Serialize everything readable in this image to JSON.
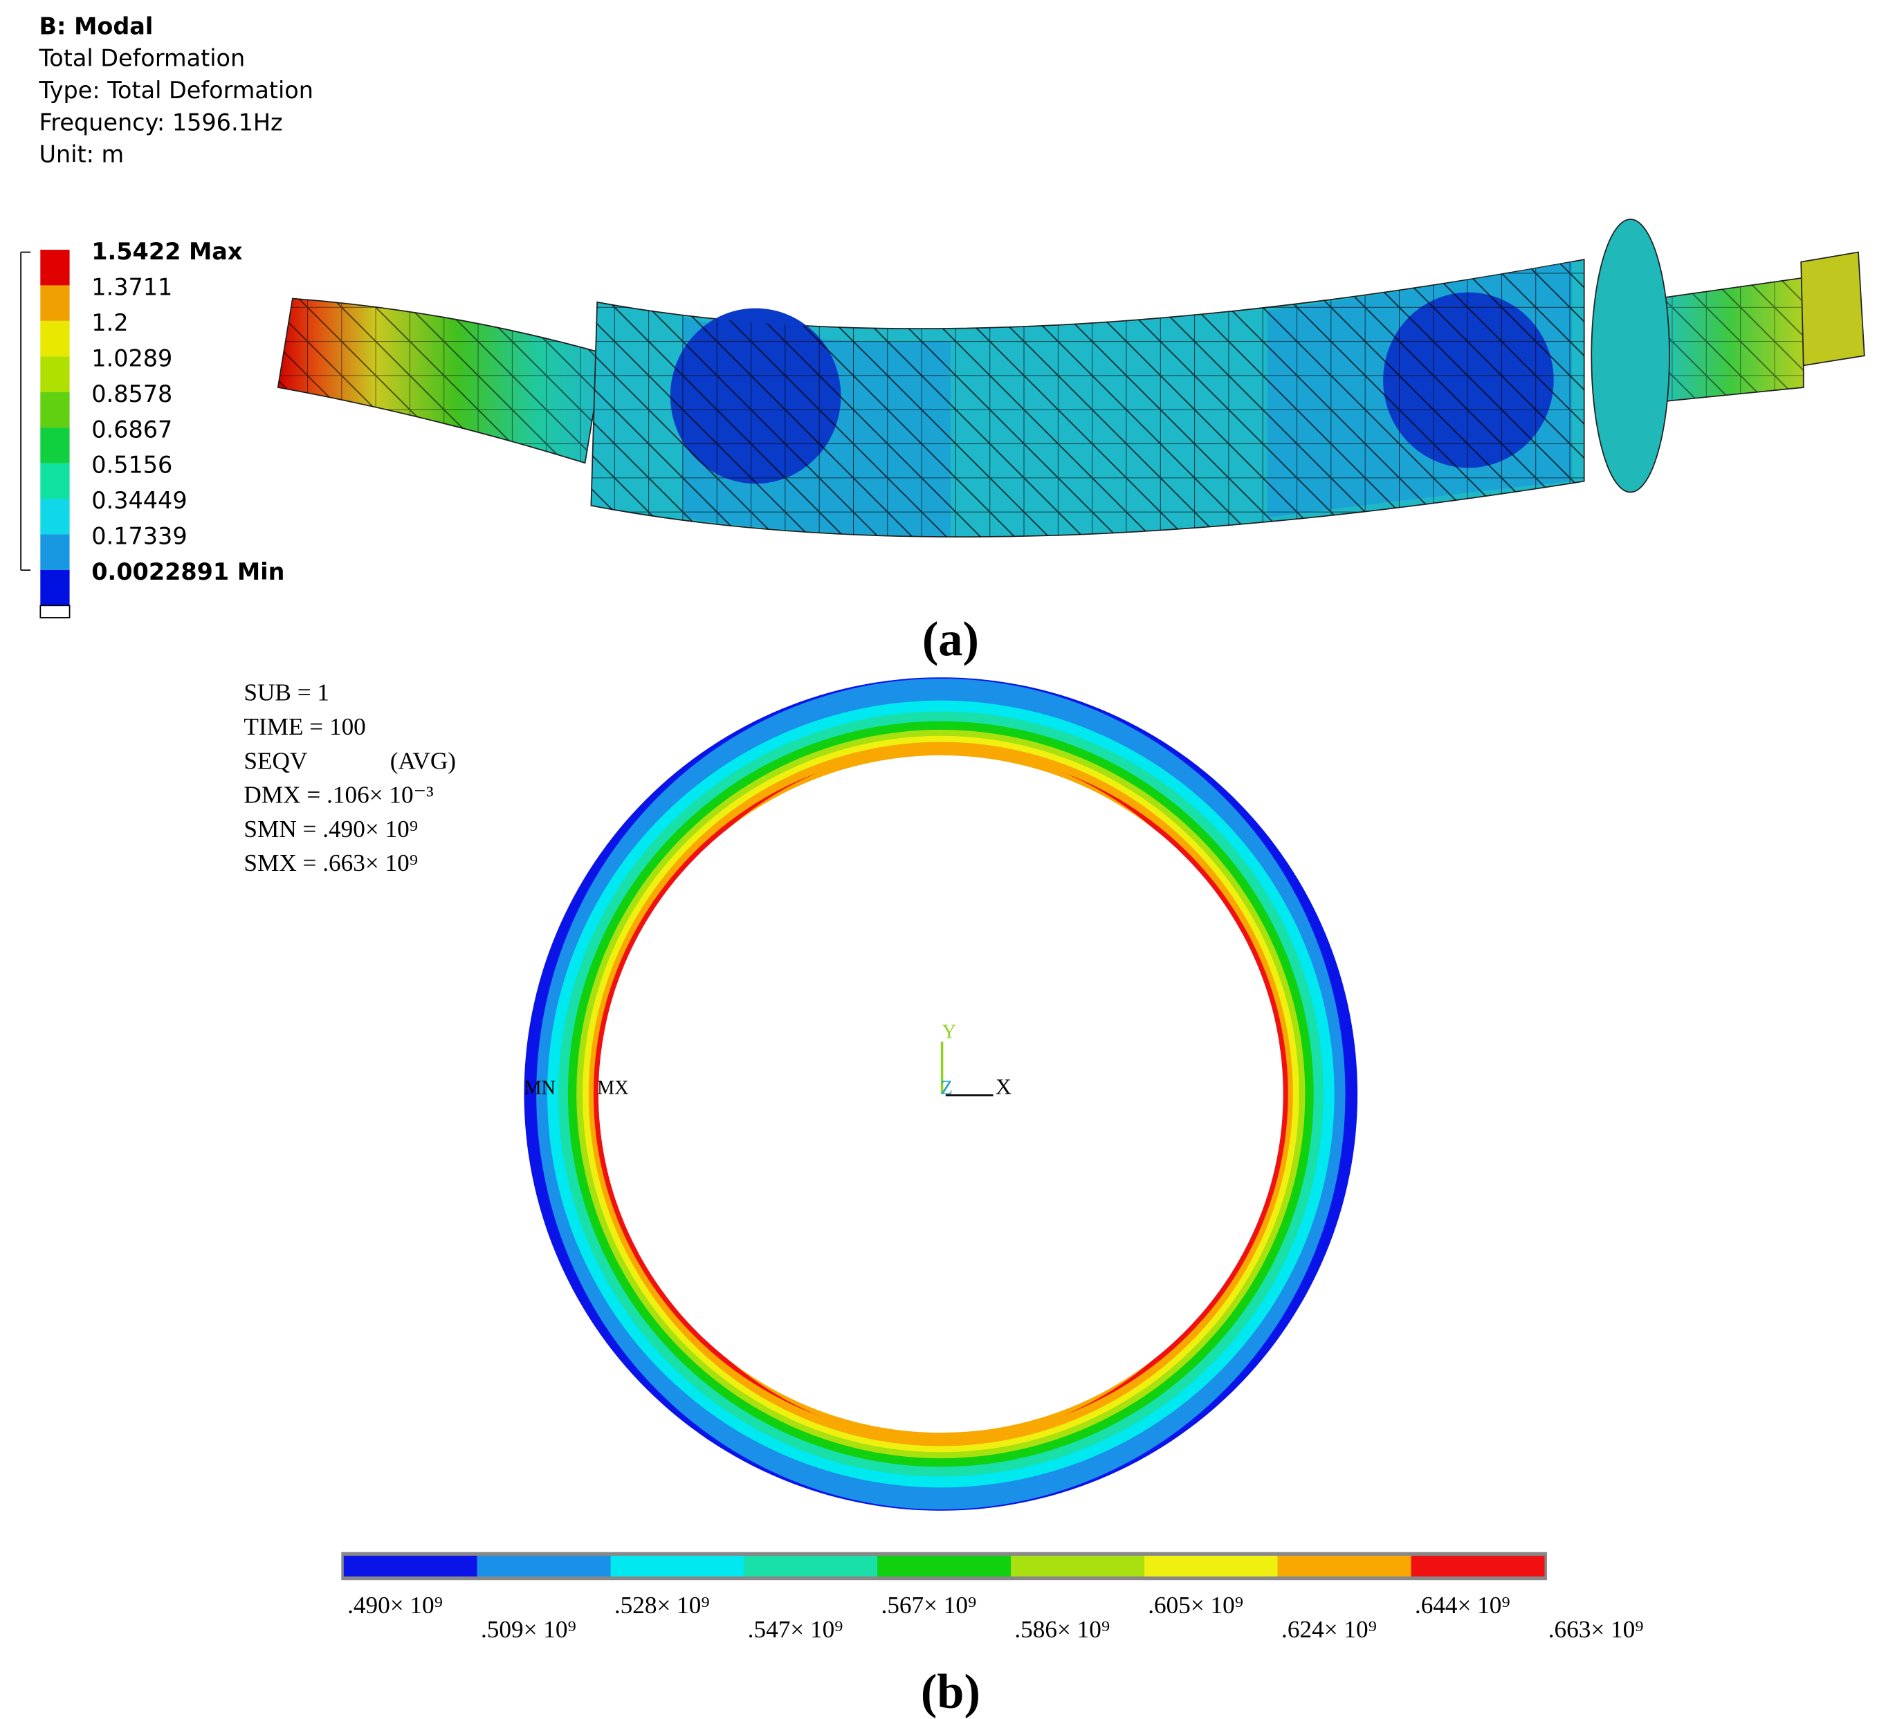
{
  "panel_a": {
    "header": [
      "B: Modal",
      "Total Deformation",
      "Type: Total Deformation",
      "Frequency: 1596.1Hz",
      "Unit: m"
    ],
    "legend": {
      "labels": [
        "1.5422 Max",
        "1.3711",
        "1.2",
        "1.0289",
        "0.8578",
        "0.6867",
        "0.5156",
        "0.34449",
        "0.17339",
        "0.0022891 Min"
      ],
      "colors": [
        "#e00000",
        "#f0a000",
        "#e8e800",
        "#b0e000",
        "#60d010",
        "#10d040",
        "#10e0a0",
        "#10d8e8",
        "#1898e0",
        "#0010e0"
      ]
    },
    "caption": "(a)"
  },
  "panel_b": {
    "info": [
      [
        "SUB = 1"
      ],
      [
        "TIME = 100"
      ],
      [
        "SEQV",
        "(AVG)"
      ],
      [
        "DMX = .106× 10⁻³"
      ],
      [
        "SMN = .490× 10⁹"
      ],
      [
        "SMX = .663× 10⁹"
      ]
    ],
    "node_labels": [
      "MN",
      "MX"
    ],
    "axis_labels": [
      "Y",
      "Z",
      "X"
    ],
    "legend": {
      "colors": [
        "#0a14e8",
        "#1a90e8",
        "#00e8f0",
        "#18e0a8",
        "#10d010",
        "#a8e010",
        "#f0f010",
        "#f8a800",
        "#f01010"
      ],
      "labels": [
        ".490× 10⁹",
        ".509× 10⁹",
        ".528× 10⁹",
        ".547× 10⁹",
        ".567× 10⁹",
        ".586× 10⁹",
        ".605× 10⁹",
        ".624× 10⁹",
        ".644× 10⁹",
        ".663× 10⁹"
      ]
    },
    "caption": "(b)"
  }
}
